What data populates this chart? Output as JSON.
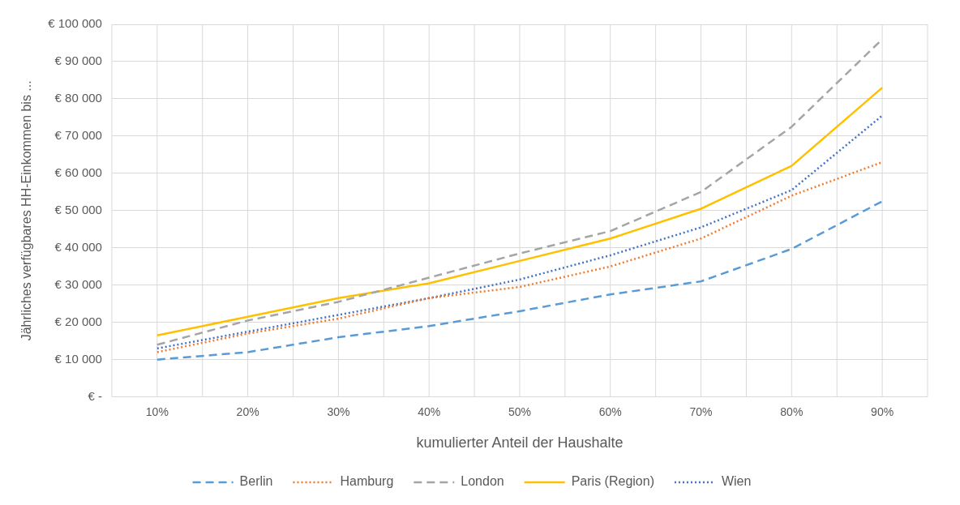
{
  "chart_data": {
    "type": "line",
    "xlabel": "kumulierter Anteil der Haushalte",
    "ylabel": "Jährliches verfügbares HH-Einkommen bis ...",
    "categories": [
      "10%",
      "20%",
      "30%",
      "40%",
      "50%",
      "60%",
      "70%",
      "80%",
      "90%"
    ],
    "ylim": [
      0,
      100000
    ],
    "yticks": [
      {
        "value": 0,
        "label": "€ -"
      },
      {
        "value": 10000,
        "label": "€ 10 000"
      },
      {
        "value": 20000,
        "label": "€ 20 000"
      },
      {
        "value": 30000,
        "label": "€ 30 000"
      },
      {
        "value": 40000,
        "label": "€ 40 000"
      },
      {
        "value": 50000,
        "label": "€ 50 000"
      },
      {
        "value": 60000,
        "label": "€ 60 000"
      },
      {
        "value": 70000,
        "label": "€ 70 000"
      },
      {
        "value": 80000,
        "label": "€ 80 000"
      },
      {
        "value": 90000,
        "label": "€ 90 000"
      },
      {
        "value": 100000,
        "label": "€ 100 000"
      }
    ],
    "grid": true,
    "legend": "bottom",
    "marker": "none",
    "series": [
      {
        "name": "Berlin",
        "color": "#5b9bd5",
        "line_style": "dashed",
        "values": [
          10000,
          12000,
          16000,
          19000,
          23000,
          27500,
          31000,
          39700,
          52500
        ]
      },
      {
        "name": "Hamburg",
        "color": "#ed7d31",
        "line_style": "dotted",
        "values": [
          12000,
          17000,
          21000,
          26500,
          29500,
          35000,
          42500,
          54000,
          63000
        ]
      },
      {
        "name": "London",
        "color": "#a5a5a5",
        "line_style": "dashed",
        "values": [
          14000,
          20500,
          25500,
          32000,
          38500,
          44500,
          55000,
          72500,
          96000
        ]
      },
      {
        "name": "Paris (Region)",
        "color": "#ffc000",
        "line_style": "solid",
        "values": [
          16500,
          21500,
          26500,
          30500,
          36500,
          42500,
          50500,
          62000,
          83000
        ]
      },
      {
        "name": "Wien",
        "color": "#4472c4",
        "line_style": "dotted",
        "values": [
          13000,
          17500,
          22000,
          26500,
          31500,
          38000,
          45500,
          55500,
          75500
        ]
      }
    ]
  }
}
